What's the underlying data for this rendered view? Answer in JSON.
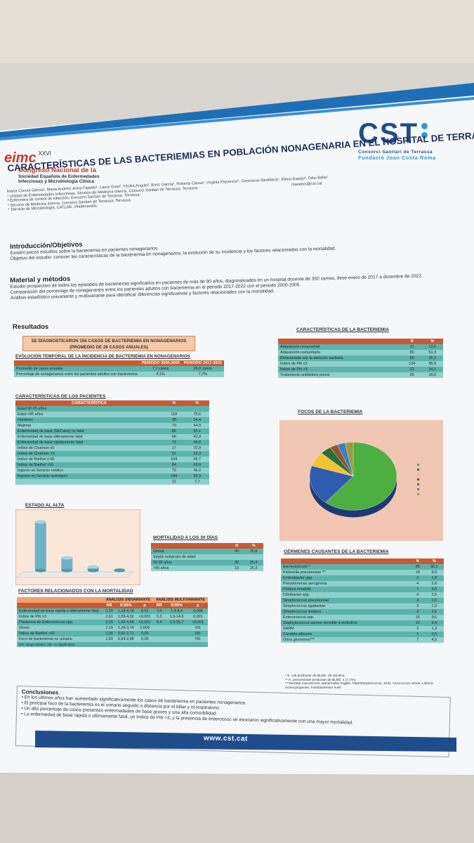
{
  "logos": {
    "eimc_mark": "eimc",
    "eimc_edition": "XXVI",
    "eimc_line1": "Congreso Nacional de la",
    "eimc_line2": "Sociedad Española de Enfermedades",
    "eimc_line3": "Infecciosas y Microbiología Clínica",
    "cst_mark": "CST",
    "cst_line1": "Consorci Sanitari de Terrassa",
    "cst_line2": "Fundació Joan Costa Roma"
  },
  "title": "CARACTERÍSTICAS DE LAS BACTERIEMIAS EN POBLACIÓN NONAGENARIA EN EL HOSPITAL DE TERRASSA",
  "authors": {
    "names": "María Consol García¹, Marta Andrés¹,Anna Fajardo¹, Laura Grau², Yésika Angulo³, Enric García³, Roberta Causa³, Virginia Plasencia⁴, Genoveva Santillana⁴, Elena Espejo³, Feliu Bella³",
    "email": "mandres@cst.cat",
    "aff1": "¹ Unidad de Enfermedades Infecciosas, Servicio de Medicina Interna, Consorci Sanitari de Terrassa, Terrassa.",
    "aff2": "² Enfermera de control de infección, Consorci Sanitari de Terrassa, Terrassa.",
    "aff3": "³ Servicio de Medicina Interna, Consorci Sanitari de Terrassa, Terrassa.",
    "aff4": "⁴ Servicio de Microbiología, CATLAB, Viladecavalls."
  },
  "intro": {
    "heading": "Introducción/Objetivos",
    "p1": "Existen pocos estudios sobre la bacteriemia en pacientes nonagenarios.",
    "p2": "Objetivo del estudio: conocer las características de la bacteriemia en nonagenarios, la evolución de su incidencia y los factores relacionados con la mortalidad."
  },
  "metodos": {
    "heading": "Material y métodos",
    "p1": "Estudio prospectivo de todos los episodios de bacteriemia significativa en pacientes de más de 90 años, diagnosticados en un hospital docente de 350 camas, dese enero de 2017 a diciembre de 2022.",
    "p2": "Comparación del porcentaje de nonagenarios entre los pacientes adultos con bacteriemia en el periodo 2017-2022 con el periodo 2000-2005.",
    "p3": "Análisis estadístico univariante y multivariante para identificar diferencias significativas y factores relacionados con la mortalidad."
  },
  "resultados": {
    "heading": "Resultados",
    "banner_l1": "SE DIAGNOSTICARON 156 CASOS DE BACTERIEMIA EN NONAGENARIOS",
    "banner_l2": "(PROMEDIO DE 26 CASOS ANUALES)"
  },
  "evolucion": {
    "heading": "EVOLUCIÓN TEMPORAL DE LA INCIDENCIA DE BACTERIEMIA EN NONAGENARIOS",
    "cols": [
      "",
      "PERIODO 2000-2005",
      "PERIODO 2017-2022"
    ],
    "rows": [
      [
        "Promedio de casos anuales",
        "7,7 casos",
        "26,0 casos"
      ],
      [
        "Porcentaje de nonagenarios entre los pacientes adultos con bacteriemia",
        "4,1%",
        "7,7%"
      ]
    ]
  },
  "pacientes": {
    "heading": "CARACTERÍSTICAS DE LOS PACIENTES",
    "cols": [
      "CARACTERÍSTICA",
      "N",
      "%"
    ],
    "rows": [
      [
        "Edad 90-95 años",
        "",
        ""
      ],
      [
        "Edad >95 años",
        "118",
        "75,6"
      ],
      [
        "Hombres",
        "38",
        "24,4"
      ],
      [
        "Mujeres",
        "70",
        "44,9"
      ],
      [
        "Enfermedad de base (McCabe) no fatal",
        "86",
        "55,1"
      ],
      [
        "Enfermedad de base últimamente fatal",
        "66",
        "42,3"
      ],
      [
        "Enfermedad de base rápidamente fatal",
        "73",
        "46,8"
      ],
      [
        "Índice de Charlson ≤5",
        "17",
        "10,9"
      ],
      [
        "Índice de Charlson >5",
        "52",
        "33,3"
      ],
      [
        "Índice de Barthel ≥ 60",
        "104",
        "66,7"
      ],
      [
        "Índice de Barthel <60",
        "84",
        "53,8"
      ],
      [
        "Ingreso en Servicio médico",
        "72",
        "46,2"
      ],
      [
        "Ingreso en Servicio quirúrgico",
        "144",
        "92,3"
      ],
      [
        "",
        "12",
        "7,7"
      ]
    ]
  },
  "estado": {
    "heading": "ESTADO AL ALTA",
    "chart_data": {
      "type": "bar",
      "categories": [
        "",
        "",
        "",
        ""
      ],
      "values": [
        70,
        18,
        5,
        1
      ],
      "data_labels": [
        "",
        "",
        "",
        ""
      ]
    }
  },
  "mortalidad30": {
    "heading": "MORTALIDAD A LOS 30 DÍAS",
    "cols": [
      "",
      "N",
      "%"
    ],
    "rows": [
      [
        "Global",
        "40",
        "25,6"
      ],
      [
        "Según subgrupo de edad",
        "",
        ""
      ],
      [
        "90-95 años",
        "30",
        "25,4"
      ],
      [
        ">95 años",
        "10",
        "26,3"
      ]
    ]
  },
  "bacteriemia": {
    "heading": "CARACTERÍSTICAS DE LA BACTERIEMIA",
    "cols": [
      "",
      "N",
      "%"
    ],
    "rows": [
      [
        "Adquisición nosocomial",
        "21",
        "13,5"
      ],
      [
        "Adquisición comunitaria",
        "80",
        "51,3"
      ],
      [
        "Relacionada con la atención sanitaria",
        "55",
        "35,2"
      ],
      [
        "Índice de Pitt ≤3",
        "134",
        "85,9"
      ],
      [
        "Índice de Pitt >3",
        "22",
        "14,1"
      ],
      [
        "Tratamiento antibiótico previo",
        "25",
        "16,0"
      ]
    ]
  },
  "focos": {
    "heading": "FOCOS DE LA BACTERIEMIA",
    "chart_data": {
      "type": "pie",
      "values": [
        61,
        19,
        7,
        4,
        3,
        3,
        3
      ],
      "colors": [
        "#4caf3f",
        "#2f5bb0",
        "#f0c531",
        "#2a6f39",
        "#8e5a2a",
        "#3f7fbf",
        "#9b9b3a"
      ],
      "legend_placement": "right"
    }
  },
  "germenes": {
    "heading": "GÉRMENES CAUSANTES DE LA BACTERIEMIA",
    "cols": [
      "",
      "N",
      "%"
    ],
    "rows": [
      [
        "Escherichi coli *",
        "86",
        "55,1"
      ],
      [
        "Klebsiella pneumoniae **",
        "14",
        "9,0"
      ],
      [
        "Enterobacter spp.",
        "3",
        "1,9"
      ],
      [
        "Pseudomonas aeruginosa",
        "4",
        "2,6"
      ],
      [
        "Proteus mirabilis",
        "7",
        "4,5"
      ],
      [
        "Citrobacter spp.",
        "4",
        "2,6"
      ],
      [
        "Streptococcus pneumoniae",
        "4",
        "2,6"
      ],
      [
        "Streptococcus agalactiae",
        "3",
        "1,9"
      ],
      [
        "Streptococcus viridans",
        "4",
        "2,6"
      ],
      [
        "Enterococcus spp.",
        "15",
        "9,6"
      ],
      [
        "Staphylococcus aureus sensible a meticilina",
        "10",
        "6,4"
      ],
      [
        "SARM",
        "2",
        "1,3"
      ],
      [
        "Candida albicans",
        "1",
        "0,6"
      ],
      [
        "Otros gérmenes***",
        "7",
        "4,5"
      ]
    ],
    "note1": "* E. coli productor de BLEE: 18 (20,9%).",
    "note2": "** K. pneumoniae productor de BLEE: 1 (7,1%).",
    "note3": "***Serratia marcescens, Bacteroides fragilis, Peptostreptococcus, SCN, Aerococcus urinae, Listeria monocytogenes, Fusobacterium nusil."
  },
  "factores": {
    "heading": "FACTORES RELACIONADOS CON LA MORTALIDAD",
    "group_univ": "ANÁLISIS UNIVARIANTE",
    "group_multi": "ANÁLISIS MULTIVARIANTE",
    "cols": [
      "",
      "RR",
      "IC95%",
      "p",
      "RR",
      "IC95%",
      "p"
    ],
    "rows": [
      [
        "Enfermedad de base rápida o últimamente fatal",
        "2,20",
        "1,16-4,18",
        "0,01",
        "3,4",
        "1,4-8,4",
        "0,008"
      ],
      [
        "Índice de Pitt >3",
        "2,61",
        "1,58-4,32",
        "<0,001",
        "5,3",
        "1,9-14,6",
        "0,001"
      ],
      [
        "Presencia de Enterococcus spp.",
        "3,09",
        "1,92-4,98",
        "<0,001",
        "8,4",
        "2,6-26,7",
        "<0,001"
      ],
      [
        "Shock",
        "2,19",
        "1,29-3,74",
        "0,008",
        "",
        "",
        "NS"
      ],
      [
        "Índice de Barthel <60",
        "1,58",
        "0,92-2,71",
        "0,09",
        "",
        "",
        "NS"
      ],
      [
        "Foco de bacteriemia no urinario",
        "1,63",
        "0,93-2,88",
        "0,08",
        "",
        "",
        "NS"
      ]
    ],
    "note": "RR: riesgo relativo; NS: no significativo"
  },
  "conclusiones": {
    "heading": "Conclusiones",
    "c1": "• En los últimos años han aumentado significativamente los casos de bacteriemia en pacientes nonagenarios.",
    "c2": "• El principal foco de la bacteriemia es el urinario seguido a distancia por el biliar y el respiratorio.",
    "c3": "• Un alto porcentaje de casos presentan enfermedades de base graves y una alta comorbilidad.",
    "c4": "• La enfermedad de base rápida o últimamente fatal, un índice de Pitt >3, y la presencia de enterococo se asociaron significativamente con una mayor mortalidad."
  },
  "footer": {
    "url": "www.cst.cat"
  }
}
